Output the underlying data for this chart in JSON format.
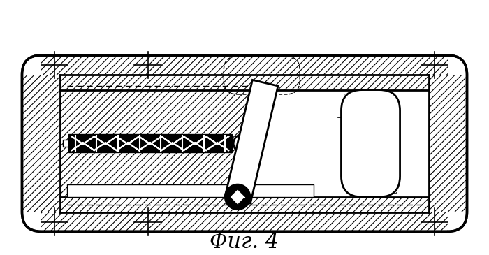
{
  "title": "Фиг. 4",
  "bg_color": "#ffffff",
  "line_color": "#000000",
  "hatch_color": "#000000",
  "fig_width": 7.0,
  "fig_height": 3.65,
  "dpi": 100
}
